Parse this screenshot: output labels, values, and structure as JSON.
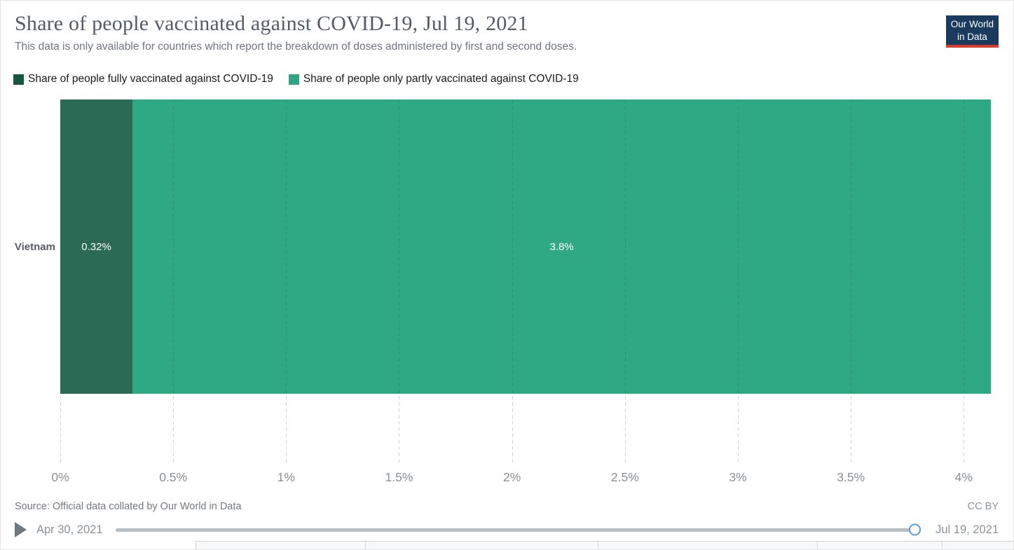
{
  "header": {
    "title": "Share of people vaccinated against COVID-19, Jul 19, 2021",
    "subtitle": "This data is only available for countries which report the breakdown of doses administered by first and second doses.",
    "logo": {
      "line1": "Our World",
      "line2": "in Data"
    }
  },
  "chart_data": {
    "type": "bar",
    "orientation": "horizontal",
    "stacked": true,
    "title": "Share of people vaccinated against COVID-19, Jul 19, 2021",
    "categories": [
      "Vietnam"
    ],
    "series": [
      {
        "name": "Share of people fully vaccinated against COVID-19",
        "values": [
          0.32
        ],
        "value_label": "0.32%",
        "color": "#2b6a54",
        "legend_color": "#15573f"
      },
      {
        "name": "Share of people only partly vaccinated against COVID-19",
        "values": [
          3.8
        ],
        "value_label": "3.8%",
        "color": "#2fa884",
        "legend_color": "#2da587"
      }
    ],
    "xlabel": "",
    "ylabel": "",
    "xlim": [
      0,
      4.12
    ],
    "x_ticks": [
      {
        "value": 0,
        "label": "0%"
      },
      {
        "value": 0.5,
        "label": "0.5%"
      },
      {
        "value": 1,
        "label": "1%"
      },
      {
        "value": 1.5,
        "label": "1.5%"
      },
      {
        "value": 2,
        "label": "2%"
      },
      {
        "value": 2.5,
        "label": "2.5%"
      },
      {
        "value": 3,
        "label": "3%"
      },
      {
        "value": 3.5,
        "label": "3.5%"
      },
      {
        "value": 4,
        "label": "4%"
      }
    ],
    "grid": "dashed-vertical",
    "legend_position": "top"
  },
  "footer": {
    "source": "Source: Official data collated by Our World in Data",
    "license": "CC BY"
  },
  "timeline": {
    "start_label": "Apr 30, 2021",
    "end_label": "Jul 19, 2021"
  }
}
